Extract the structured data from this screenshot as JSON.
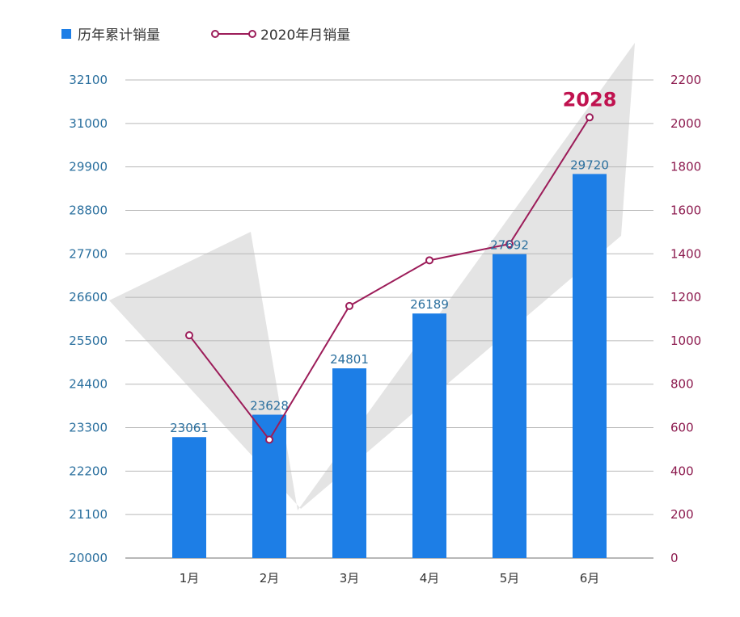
{
  "legend": {
    "bar_label": "历年累计销量",
    "line_label": "2020年月销量"
  },
  "colors": {
    "bar": "#1d7ee6",
    "line": "#9c1c59",
    "left_axis_text": "#2a6f9e",
    "right_axis_text": "#8c1a4e",
    "highlight_label": "#c0124f",
    "grid": "#b8b8b8",
    "checkmark": "#e3e3e3"
  },
  "chart_data": {
    "type": "bar",
    "categories": [
      "1月",
      "2月",
      "3月",
      "4月",
      "5月",
      "6月"
    ],
    "series": [
      {
        "name": "历年累计销量",
        "type": "bar",
        "axis": "left",
        "values": [
          23061,
          23628,
          24801,
          26189,
          27692,
          29720
        ]
      },
      {
        "name": "2020年月销量",
        "type": "line",
        "axis": "right",
        "values": [
          1025,
          545,
          1160,
          1370,
          1445,
          2028
        ]
      }
    ],
    "left_axis": {
      "ylim": [
        20000,
        32100
      ],
      "ticks": [
        20000,
        21100,
        22200,
        23300,
        24400,
        25500,
        26600,
        27700,
        28800,
        29900,
        31000,
        32100
      ]
    },
    "right_axis": {
      "ylim": [
        0,
        2200
      ],
      "ticks": [
        0,
        200,
        400,
        600,
        800,
        1000,
        1200,
        1400,
        1600,
        1800,
        2000,
        2200
      ]
    },
    "bar_labels": [
      "23061",
      "23628",
      "24801",
      "26189",
      "27692",
      "29720"
    ],
    "highlight": {
      "category": "6月",
      "label": "2028"
    },
    "grid": true,
    "legend_position": "top-left"
  }
}
